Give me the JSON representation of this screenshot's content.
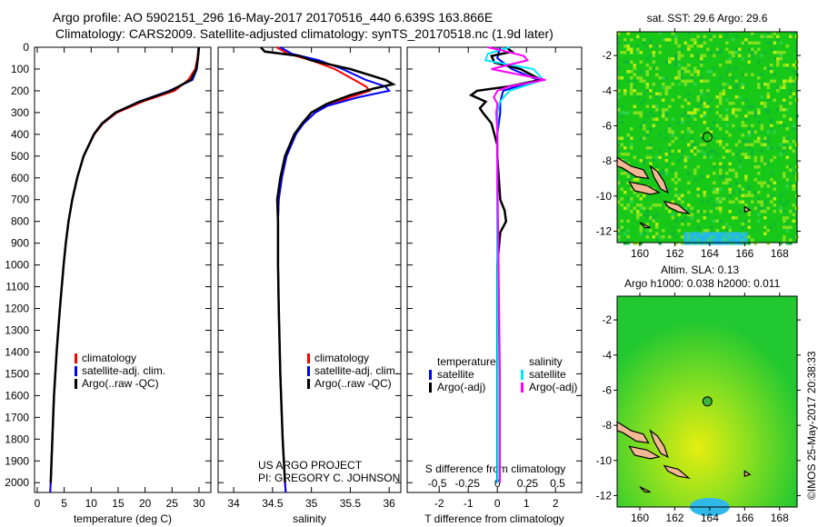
{
  "title_line1": "Argo profile: AO 5902151_296 16-May-2017 20170516_440 6.639S 163.866E",
  "title_line2": "Climatology: CARS2009. Satellite-adjusted climatology: synTS_20170518.nc (1.9d later)",
  "credit": "©IMOS 25-May-2017 20:38:33",
  "project_line1": "US ARGO PROJECT",
  "project_line2": "PI: GREGORY C. JOHNSON",
  "colors": {
    "climatology": "#ff0000",
    "satellite": "#0000ff",
    "argo": "#000000",
    "sal_satellite": "#00e5ff",
    "sal_argo": "#ff00ff"
  },
  "chart_data": [
    {
      "type": "line",
      "id": "temperature",
      "xlabel": "temperature (deg C)",
      "xlim": [
        -0.5,
        32.2
      ],
      "ylim": [
        2045,
        0
      ],
      "xticks": [
        0,
        5,
        10,
        15,
        20,
        25,
        30
      ],
      "yticks": [
        0,
        100,
        200,
        300,
        400,
        500,
        600,
        700,
        800,
        900,
        1000,
        1100,
        1200,
        1300,
        1400,
        1500,
        1600,
        1700,
        1800,
        1900,
        2000
      ],
      "legend": [
        "climatology",
        "satellite-adj. clim.",
        "Argo(..raw -QC)"
      ],
      "series": [
        {
          "name": "climatology",
          "color": "#ff0000",
          "depth": [
            0,
            50,
            100,
            150,
            200,
            250,
            300,
            350,
            400,
            500,
            600,
            700,
            800,
            900,
            1000,
            1200,
            1400,
            1600,
            1800,
            2000,
            2045
          ],
          "values": [
            29.9,
            29.7,
            29.3,
            28.0,
            25.5,
            19.5,
            14.8,
            12.2,
            10.6,
            8.6,
            7.4,
            6.5,
            5.8,
            5.3,
            4.9,
            4.2,
            3.6,
            3.1,
            2.8,
            2.5,
            2.4
          ]
        },
        {
          "name": "satellite-adj. clim.",
          "color": "#0000ff",
          "depth": [
            0,
            50,
            100,
            150,
            200,
            250,
            300,
            350,
            400,
            500,
            600,
            700,
            800,
            900,
            1000,
            1200,
            1400,
            1600,
            1800,
            2000,
            2045
          ],
          "values": [
            29.9,
            29.8,
            29.6,
            28.8,
            24.5,
            18.8,
            14.6,
            12.1,
            10.5,
            8.6,
            7.4,
            6.5,
            5.8,
            5.3,
            4.9,
            4.2,
            3.6,
            3.1,
            2.8,
            2.5,
            2.4
          ]
        },
        {
          "name": "Argo(..raw -QC)",
          "color": "#000000",
          "depth": [
            0,
            50,
            100,
            150,
            200,
            250,
            300,
            350,
            400,
            500,
            600,
            700,
            800,
            900,
            1000,
            1200,
            1400,
            1600,
            1800,
            2000
          ],
          "values": [
            30.0,
            29.8,
            29.5,
            28.5,
            24.8,
            19.0,
            14.5,
            12.0,
            10.5,
            8.6,
            7.4,
            6.5,
            5.8,
            5.3,
            4.9,
            4.2,
            3.6,
            3.1,
            2.8,
            2.5
          ]
        }
      ]
    },
    {
      "type": "line",
      "id": "salinity",
      "xlabel": "salinity",
      "xlim": [
        33.8,
        36.15
      ],
      "ylim": [
        2045,
        0
      ],
      "xticks": [
        34,
        34.5,
        35,
        35.5,
        36
      ],
      "legend": [
        "climatology",
        "satellite-adj. clim.",
        "Argo(..raw -QC)"
      ],
      "series": [
        {
          "name": "climatology",
          "color": "#ff0000",
          "depth": [
            0,
            30,
            60,
            100,
            150,
            180,
            200,
            230,
            270,
            300,
            350,
            400,
            500,
            600,
            700,
            800,
            1000,
            1200,
            1500,
            1800,
            2000,
            2045
          ],
          "values": [
            34.55,
            34.7,
            35.0,
            35.3,
            35.55,
            35.7,
            35.75,
            35.5,
            35.2,
            35.05,
            34.9,
            34.8,
            34.68,
            34.62,
            34.58,
            34.57,
            34.57,
            34.58,
            34.6,
            34.63,
            34.66,
            34.67
          ]
        },
        {
          "name": "satellite-adj. clim.",
          "color": "#0000ff",
          "depth": [
            0,
            30,
            60,
            100,
            150,
            180,
            200,
            230,
            270,
            300,
            350,
            400,
            500,
            600,
            700,
            800,
            1000,
            1200,
            1500,
            1800,
            2000,
            2045
          ],
          "values": [
            34.6,
            34.75,
            35.1,
            35.4,
            35.7,
            35.95,
            36.0,
            35.6,
            35.2,
            35.05,
            34.9,
            34.8,
            34.68,
            34.62,
            34.58,
            34.57,
            34.57,
            34.58,
            34.6,
            34.63,
            34.66,
            34.67
          ]
        },
        {
          "name": "Argo(..raw -QC)",
          "color": "#000000",
          "depth": [
            0,
            20,
            40,
            60,
            100,
            150,
            170,
            190,
            220,
            260,
            300,
            350,
            400,
            500,
            600,
            700,
            800,
            1000,
            1200,
            1500,
            1800,
            2000
          ],
          "values": [
            34.35,
            34.4,
            34.85,
            35.0,
            35.5,
            35.95,
            36.05,
            35.8,
            35.5,
            35.2,
            35.0,
            34.88,
            34.78,
            34.66,
            34.6,
            34.56,
            34.57,
            34.57,
            34.58,
            34.6,
            34.63,
            34.66
          ]
        }
      ]
    },
    {
      "type": "line",
      "id": "difference",
      "xlabel": "T difference from climatology",
      "x2label": "S difference from climatology",
      "xlim": [
        -3.1,
        2.9
      ],
      "x2lim": [
        -0.75,
        0.7
      ],
      "ylim": [
        2045,
        0
      ],
      "xticks": [
        -2,
        -1,
        0,
        1,
        2
      ],
      "x2ticks": [
        -0.5,
        -0.25,
        0,
        0.25,
        0.5
      ],
      "legend_headers": [
        "temperature",
        "salinity"
      ],
      "legend": [
        "satellite",
        "Argo(-adj)",
        "satellite",
        "Argo(-adj)"
      ],
      "series": [
        {
          "name": "T satellite",
          "axis": "T",
          "color": "#0000ff",
          "depth": [
            0,
            50,
            100,
            150,
            200,
            250,
            300,
            400,
            500,
            700,
            1000,
            1500,
            2000
          ],
          "values": [
            0.1,
            0.0,
            0.5,
            1.4,
            0.2,
            0.1,
            0.1,
            0.0,
            0.0,
            0.0,
            0.0,
            0.0,
            0.0
          ]
        },
        {
          "name": "T Argo(-adj)",
          "axis": "T",
          "color": "#000000",
          "depth": [
            0,
            20,
            40,
            70,
            100,
            150,
            180,
            200,
            220,
            250,
            280,
            300,
            350,
            400,
            450,
            500,
            600,
            700,
            750,
            800,
            850,
            1000,
            1500,
            2000
          ],
          "values": [
            0.3,
            0.5,
            -0.2,
            -0.1,
            0.8,
            1.5,
            0.4,
            -0.7,
            -0.9,
            -0.4,
            -0.6,
            -0.5,
            -0.2,
            -0.1,
            0.0,
            0.0,
            0.05,
            0.1,
            0.25,
            0.3,
            0.1,
            0.0,
            0.0,
            0.0
          ]
        },
        {
          "name": "S satellite",
          "axis": "S",
          "color": "#00e5ff",
          "depth": [
            0,
            30,
            60,
            100,
            150,
            200,
            250,
            300,
            400,
            600,
            1000,
            1500,
            2000
          ],
          "values": [
            0.1,
            -0.08,
            -0.1,
            0.3,
            0.38,
            0.1,
            0.02,
            0.0,
            0.0,
            0.0,
            0.0,
            0.0,
            0.0
          ]
        },
        {
          "name": "S Argo(-adj)",
          "axis": "S",
          "color": "#ff00ff",
          "depth": [
            0,
            20,
            40,
            60,
            100,
            150,
            180,
            200,
            230,
            260,
            300,
            400,
            600,
            1000,
            1500,
            2000
          ],
          "values": [
            -0.08,
            0.08,
            0.22,
            0.25,
            -0.05,
            0.4,
            0.1,
            0.0,
            -0.03,
            0.0,
            -0.01,
            0.0,
            0.0,
            0.01,
            0.02,
            0.02
          ]
        }
      ]
    }
  ],
  "maps": [
    {
      "title": "sat. SST: 29.6 Argo: 29.6",
      "xticks": [
        160,
        162,
        164,
        166,
        168
      ],
      "yticks": [
        -2,
        -4,
        -6,
        -8,
        -10,
        -12
      ],
      "lon": [
        158.7,
        169.0
      ],
      "lat": [
        -0.65,
        -12.65
      ],
      "float": [
        163.866,
        -6.639
      ],
      "style": "sst"
    },
    {
      "title1": "Altim. SLA: 0.13",
      "title2": "Argo h1000: 0.038 h2000: 0.011",
      "xticks": [
        160,
        162,
        164,
        166,
        168
      ],
      "yticks": [
        -2,
        -4,
        -6,
        -8,
        -10,
        -12
      ],
      "lon": [
        158.7,
        169.0
      ],
      "lat": [
        -0.65,
        -12.65
      ],
      "float": [
        163.866,
        -6.639
      ],
      "style": "sla"
    }
  ]
}
